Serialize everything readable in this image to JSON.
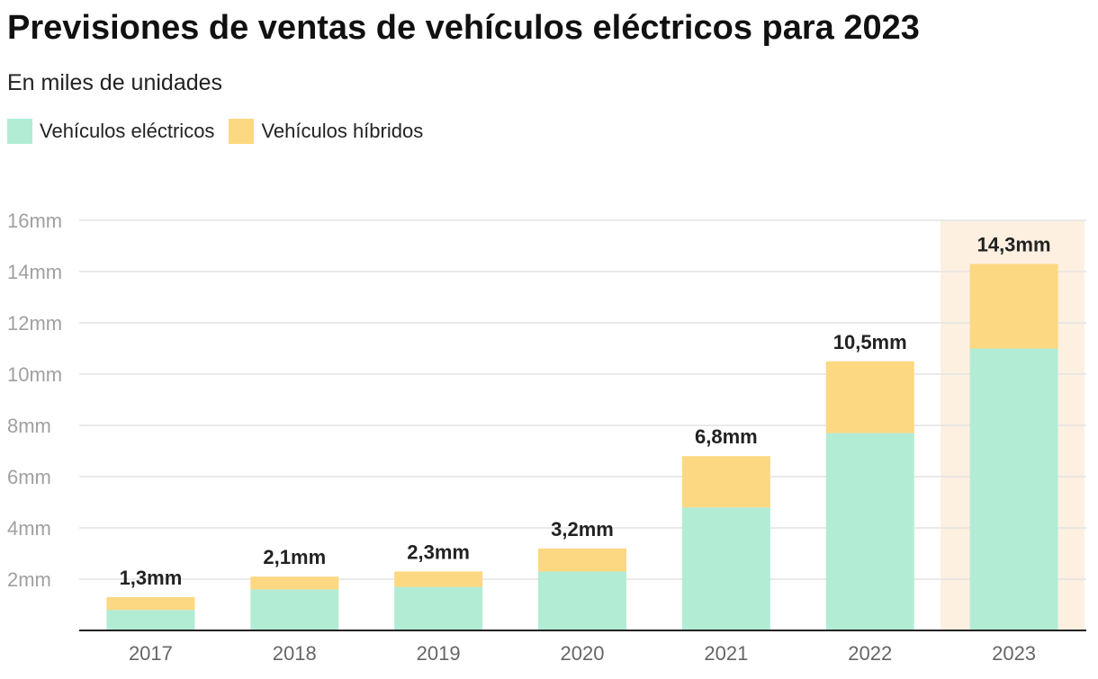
{
  "chart_data": {
    "type": "bar",
    "stacked": true,
    "title": "Previsiones de ventas de vehículos eléctricos para 2023",
    "subtitle": "En miles de unidades",
    "categories": [
      "2017",
      "2018",
      "2019",
      "2020",
      "2021",
      "2022",
      "2023"
    ],
    "series": [
      {
        "name": "Vehículos eléctricos",
        "color": "#b2ecd5",
        "values": [
          0.8,
          1.6,
          1.7,
          2.3,
          4.8,
          7.7,
          11.0
        ]
      },
      {
        "name": "Vehículos híbridos",
        "color": "#fdd882",
        "values": [
          0.5,
          0.5,
          0.6,
          0.9,
          2.0,
          2.8,
          3.3
        ]
      }
    ],
    "totals_labels": [
      "1,3mm",
      "2,1mm",
      "2,3mm",
      "3,2mm",
      "6,8mm",
      "10,5mm",
      "14,3mm"
    ],
    "y_ticks": [
      "2mm",
      "4mm",
      "6mm",
      "8mm",
      "10mm",
      "12mm",
      "14mm",
      "16mm"
    ],
    "ylim": [
      0,
      16
    ],
    "grid": true,
    "legend_position": "top-left",
    "highlight": {
      "category": "2023",
      "color": "#fdf0e1"
    }
  }
}
